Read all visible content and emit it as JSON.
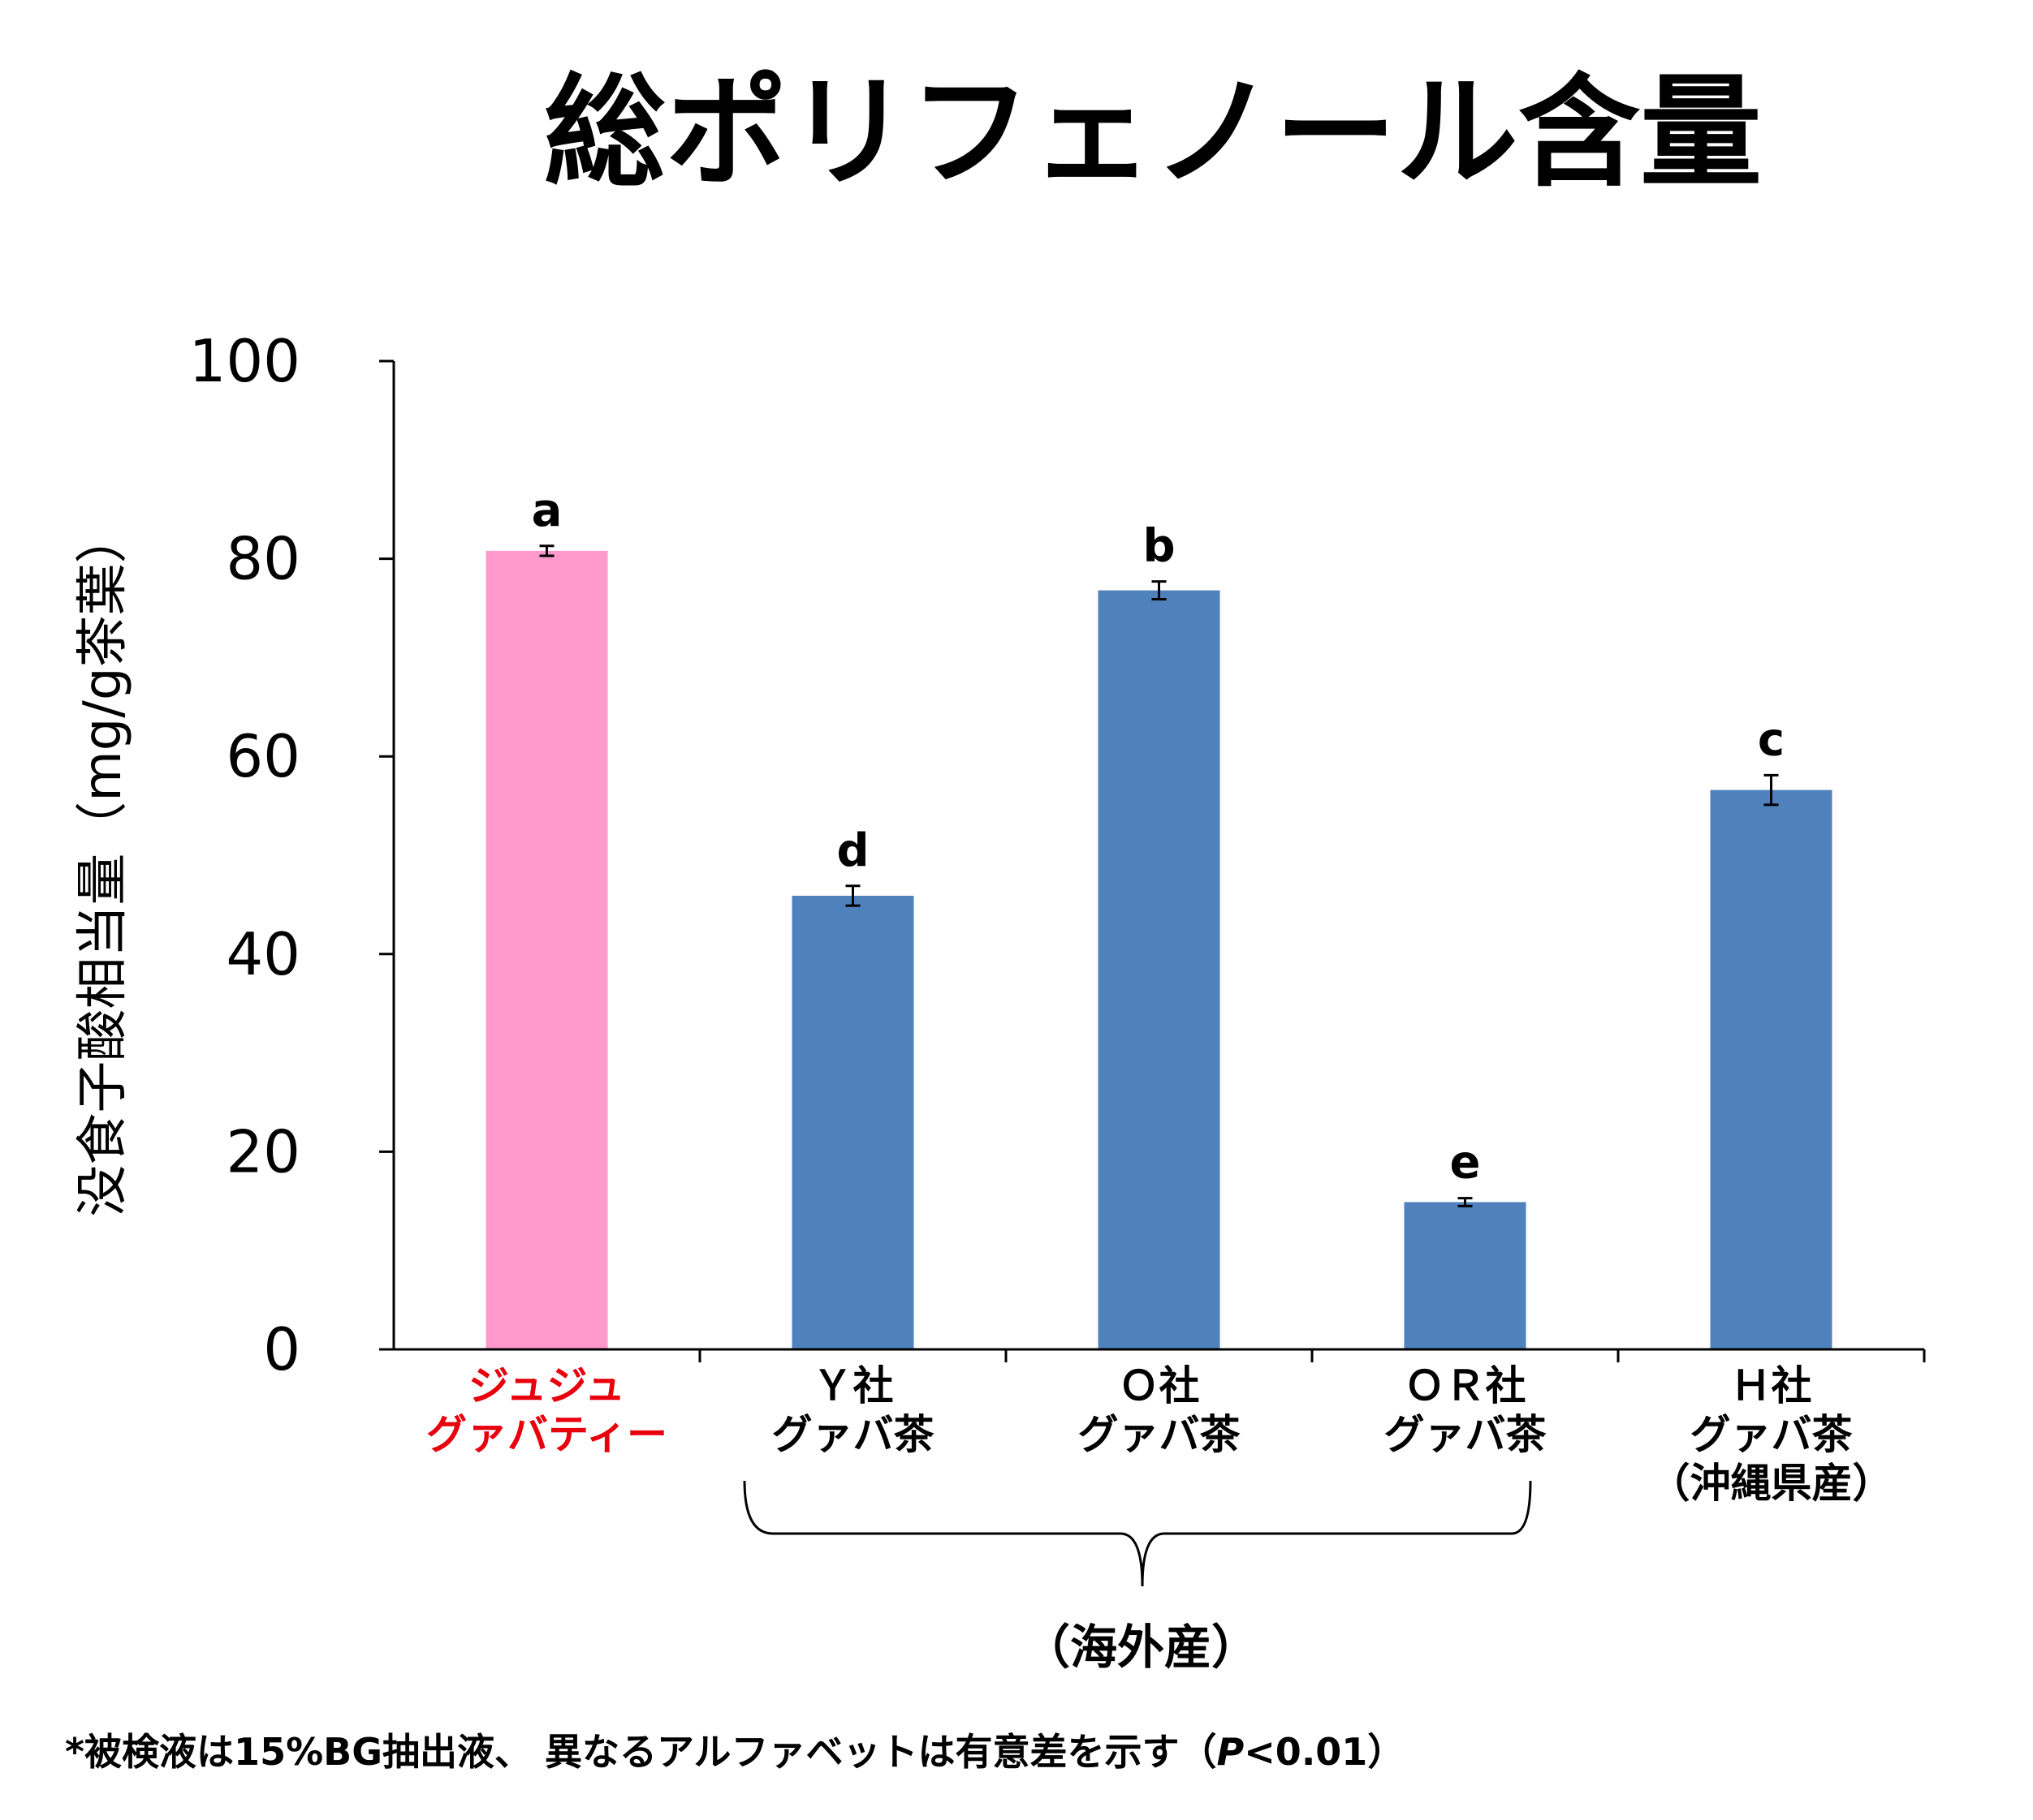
{
  "chart_data": {
    "type": "bar",
    "title": "総ポリフェノール含量",
    "ylabel": "没食子酸相当量（mg/g茶葉）",
    "xlabel": "",
    "ylim": [
      0,
      100
    ],
    "yticks": [
      "0",
      "20",
      "40",
      "60",
      "80",
      "100"
    ],
    "categories": [
      {
        "lines": [
          "ジュジュ",
          "グァバティー"
        ],
        "color": "#e8000d"
      },
      {
        "lines": [
          "Ｙ社",
          "グァバ茶"
        ],
        "color": "#000000"
      },
      {
        "lines": [
          "Ｏ社",
          "グァバ茶"
        ],
        "color": "#000000"
      },
      {
        "lines": [
          "ＯＲ社",
          "グァバ茶"
        ],
        "color": "#000000"
      },
      {
        "lines": [
          "Ｈ社",
          "グァバ茶",
          "（沖縄県産）"
        ],
        "color": "#000000"
      }
    ],
    "values": [
      80.8,
      45.9,
      76.8,
      14.9,
      56.6
    ],
    "errors": [
      0.5,
      1.0,
      0.9,
      0.4,
      1.5
    ],
    "significance": [
      "a",
      "d",
      "b",
      "e",
      "c"
    ],
    "bar_colors": [
      "#ff99cc",
      "#4f81bd",
      "#4f81bd",
      "#4f81bd",
      "#4f81bd"
    ],
    "group_label": "（海外産）",
    "footnote_main": "*被検液は15%BG抽出液、 異なるアルファベットは有意差を示す（",
    "footnote_p": "P",
    "footnote_end": "<0.01）"
  }
}
